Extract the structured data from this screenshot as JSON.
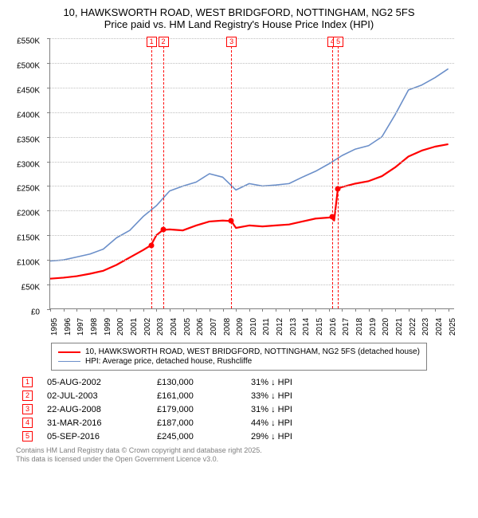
{
  "title": {
    "line1": "10, HAWKSWORTH ROAD, WEST BRIDGFORD, NOTTINGHAM, NG2 5FS",
    "line2": "Price paid vs. HM Land Registry's House Price Index (HPI)"
  },
  "chart": {
    "type": "line",
    "background_color": "#ffffff",
    "grid_color": "#bfbfbf",
    "axis_color": "#808080",
    "label_fontsize": 10,
    "y": {
      "min": 0,
      "max": 550000,
      "step": 50000,
      "labels": [
        "£0",
        "£50K",
        "£100K",
        "£150K",
        "£200K",
        "£250K",
        "£300K",
        "£350K",
        "£400K",
        "£450K",
        "£500K",
        "£550K"
      ]
    },
    "x": {
      "min": 1995,
      "max": 2025.5,
      "labels": [
        "1995",
        "1996",
        "1997",
        "1998",
        "1999",
        "2000",
        "2001",
        "2002",
        "2003",
        "2004",
        "2005",
        "2006",
        "2007",
        "2008",
        "2009",
        "2010",
        "2011",
        "2012",
        "2013",
        "2014",
        "2015",
        "2016",
        "2017",
        "2018",
        "2019",
        "2020",
        "2021",
        "2022",
        "2023",
        "2024",
        "2025"
      ]
    },
    "series": [
      {
        "name": "10, HAWKSWORTH ROAD, WEST BRIDGFORD, NOTTINGHAM, NG2 5FS (detached house)",
        "color": "#ff0000",
        "width": 2.2,
        "points": [
          [
            1995,
            62000
          ],
          [
            1996,
            64000
          ],
          [
            1997,
            67000
          ],
          [
            1998,
            72000
          ],
          [
            1999,
            78000
          ],
          [
            2000,
            90000
          ],
          [
            2001,
            105000
          ],
          [
            2002,
            120000
          ],
          [
            2002.6,
            130000
          ],
          [
            2003,
            150000
          ],
          [
            2003.5,
            161000
          ],
          [
            2004,
            162000
          ],
          [
            2005,
            160000
          ],
          [
            2006,
            170000
          ],
          [
            2007,
            178000
          ],
          [
            2008,
            180000
          ],
          [
            2008.65,
            179000
          ],
          [
            2009,
            165000
          ],
          [
            2010,
            170000
          ],
          [
            2011,
            168000
          ],
          [
            2012,
            170000
          ],
          [
            2013,
            172000
          ],
          [
            2014,
            178000
          ],
          [
            2015,
            184000
          ],
          [
            2016,
            186000
          ],
          [
            2016.25,
            187000
          ],
          [
            2016.4,
            180000
          ],
          [
            2016.68,
            245000
          ],
          [
            2017,
            248000
          ],
          [
            2018,
            255000
          ],
          [
            2019,
            260000
          ],
          [
            2020,
            270000
          ],
          [
            2021,
            288000
          ],
          [
            2022,
            310000
          ],
          [
            2023,
            322000
          ],
          [
            2024,
            330000
          ],
          [
            2025,
            335000
          ]
        ]
      },
      {
        "name": "HPI: Average price, detached house, Rushcliffe",
        "color": "#6b8fc9",
        "width": 1.6,
        "points": [
          [
            1995,
            98000
          ],
          [
            1996,
            100000
          ],
          [
            1997,
            106000
          ],
          [
            1998,
            112000
          ],
          [
            1999,
            122000
          ],
          [
            2000,
            145000
          ],
          [
            2001,
            160000
          ],
          [
            2002,
            188000
          ],
          [
            2003,
            210000
          ],
          [
            2004,
            240000
          ],
          [
            2005,
            250000
          ],
          [
            2006,
            258000
          ],
          [
            2007,
            275000
          ],
          [
            2008,
            268000
          ],
          [
            2009,
            242000
          ],
          [
            2010,
            255000
          ],
          [
            2011,
            250000
          ],
          [
            2012,
            252000
          ],
          [
            2013,
            255000
          ],
          [
            2014,
            268000
          ],
          [
            2015,
            280000
          ],
          [
            2016,
            295000
          ],
          [
            2017,
            312000
          ],
          [
            2018,
            325000
          ],
          [
            2019,
            332000
          ],
          [
            2020,
            350000
          ],
          [
            2021,
            395000
          ],
          [
            2022,
            445000
          ],
          [
            2023,
            455000
          ],
          [
            2024,
            470000
          ],
          [
            2025,
            488000
          ]
        ]
      }
    ],
    "sale_markers": [
      {
        "idx": "1",
        "year": 2002.6,
        "price": 130000
      },
      {
        "idx": "2",
        "year": 2003.5,
        "price": 161000
      },
      {
        "idx": "3",
        "year": 2008.64,
        "price": 179000
      },
      {
        "idx": "4",
        "year": 2016.25,
        "price": 187000
      },
      {
        "idx": "5",
        "year": 2016.68,
        "price": 245000
      }
    ],
    "marker_color": "#ff0000"
  },
  "legend": {
    "border_color": "#808080",
    "fontsize": 10,
    "items": [
      {
        "label": "10, HAWKSWORTH ROAD, WEST BRIDGFORD, NOTTINGHAM, NG2 5FS (detached house)",
        "color": "#ff0000",
        "width": 2.2
      },
      {
        "label": "HPI: Average price, detached house, Rushcliffe",
        "color": "#6b8fc9",
        "width": 1.6
      }
    ]
  },
  "sales_table": {
    "rows": [
      {
        "idx": "1",
        "date": "05-AUG-2002",
        "price": "£130,000",
        "diff": "31% ↓ HPI"
      },
      {
        "idx": "2",
        "date": "02-JUL-2003",
        "price": "£161,000",
        "diff": "33% ↓ HPI"
      },
      {
        "idx": "3",
        "date": "22-AUG-2008",
        "price": "£179,000",
        "diff": "31% ↓ HPI"
      },
      {
        "idx": "4",
        "date": "31-MAR-2016",
        "price": "£187,000",
        "diff": "44% ↓ HPI"
      },
      {
        "idx": "5",
        "date": "05-SEP-2016",
        "price": "£245,000",
        "diff": "29% ↓ HPI"
      }
    ]
  },
  "footer": {
    "line1": "Contains HM Land Registry data © Crown copyright and database right 2025.",
    "line2": "This data is licensed under the Open Government Licence v3.0."
  }
}
